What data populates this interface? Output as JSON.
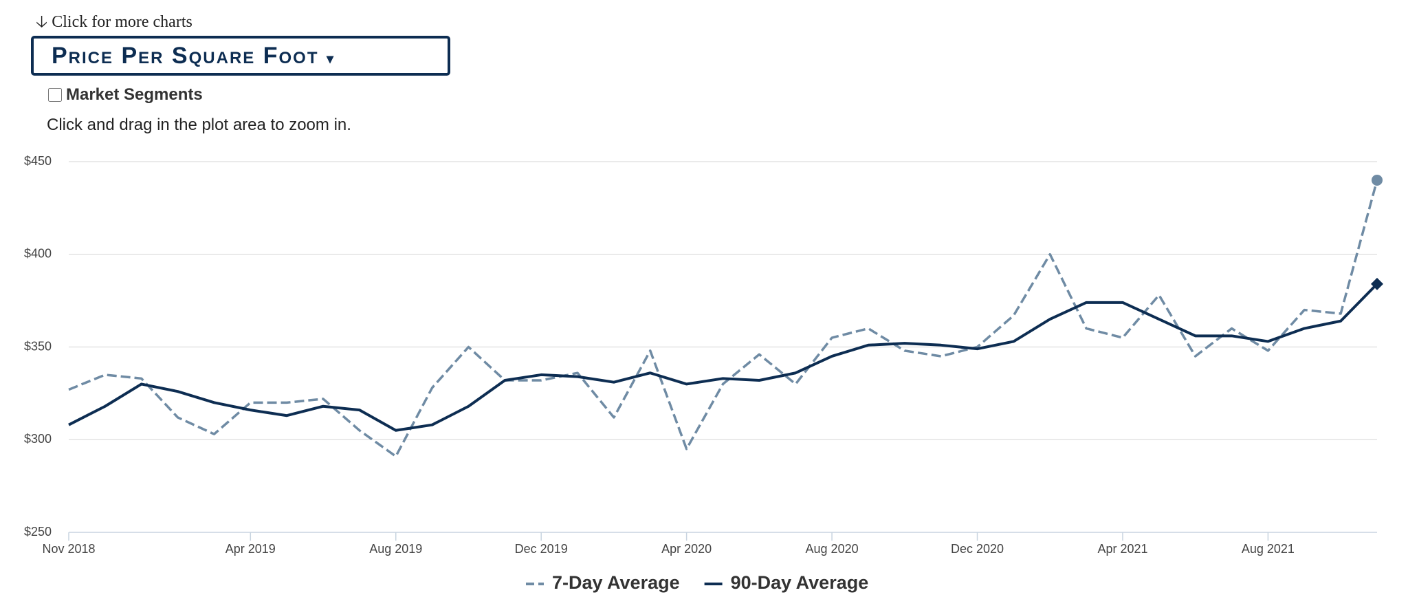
{
  "ui": {
    "more_charts": "Click for more charts",
    "chart_menu": "Price Per Square Foot",
    "segments_label": "Market Segments",
    "zoom_hint": "Click and drag in the plot area to zoom in."
  },
  "chart_data": {
    "type": "line",
    "x": [
      "2018-11",
      "2018-12",
      "2019-01",
      "2019-02",
      "2019-03",
      "2019-04",
      "2019-05",
      "2019-06",
      "2019-07",
      "2019-08",
      "2019-09",
      "2019-10",
      "2019-11",
      "2019-12",
      "2020-01",
      "2020-02",
      "2020-03",
      "2020-04",
      "2020-05",
      "2020-06",
      "2020-07",
      "2020-08",
      "2020-09",
      "2020-10",
      "2020-11",
      "2020-12",
      "2021-01",
      "2021-02",
      "2021-03",
      "2021-04",
      "2021-05",
      "2021-06",
      "2021-07",
      "2021-08",
      "2021-09",
      "2021-10",
      "2021-11"
    ],
    "series": [
      {
        "name": "7-Day Average",
        "color": "#6f8ba4",
        "dashed": true,
        "values": [
          327,
          335,
          333,
          312,
          303,
          320,
          320,
          322,
          305,
          291,
          328,
          350,
          332,
          332,
          336,
          312,
          348,
          295,
          330,
          346,
          330,
          355,
          360,
          348,
          345,
          350,
          367,
          400,
          360,
          355,
          378,
          345,
          360,
          348,
          370,
          368,
          440
        ]
      },
      {
        "name": "90-Day Average",
        "color": "#0d2d52",
        "dashed": false,
        "values": [
          308,
          318,
          330,
          326,
          320,
          316,
          313,
          318,
          316,
          305,
          308,
          318,
          332,
          335,
          334,
          331,
          336,
          330,
          333,
          332,
          336,
          345,
          351,
          352,
          351,
          349,
          353,
          365,
          374,
          374,
          365,
          356,
          356,
          353,
          360,
          364,
          384
        ]
      }
    ],
    "xlim": [
      "2018-11",
      "2021-11"
    ],
    "xticks": [
      {
        "value": "2018-11",
        "label": "Nov 2018"
      },
      {
        "value": "2019-04",
        "label": "Apr 2019"
      },
      {
        "value": "2019-08",
        "label": "Aug 2019"
      },
      {
        "value": "2019-12",
        "label": "Dec 2019"
      },
      {
        "value": "2020-04",
        "label": "Apr 2020"
      },
      {
        "value": "2020-08",
        "label": "Aug 2020"
      },
      {
        "value": "2020-12",
        "label": "Dec 2020"
      },
      {
        "value": "2021-04",
        "label": "Apr 2021"
      },
      {
        "value": "2021-08",
        "label": "Aug 2021"
      }
    ],
    "ylim": [
      250,
      450
    ],
    "yticks": [
      {
        "value": 250,
        "label": "$250"
      },
      {
        "value": 300,
        "label": "$300"
      },
      {
        "value": 350,
        "label": "$350"
      },
      {
        "value": 400,
        "label": "$400"
      },
      {
        "value": 450,
        "label": "$450"
      }
    ],
    "grid": true
  }
}
